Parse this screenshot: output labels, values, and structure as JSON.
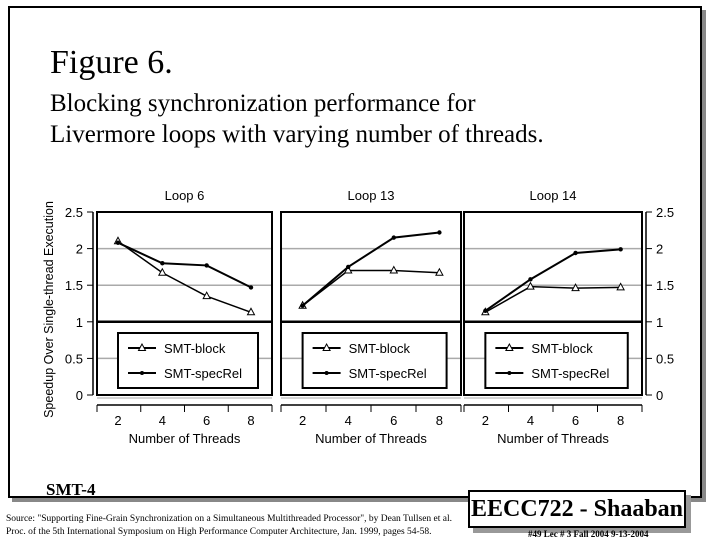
{
  "slide": {
    "figure_label": "Figure 6.",
    "subtitle_line1": "Blocking synchronization performance for",
    "subtitle_line2": "Livermore loops with varying number of threads.",
    "section": "SMT-4",
    "source_line1": "Source: \"Supporting Fine-Grain Synchronization on a Simultaneous Multithreaded Processor\", by Dean Tullsen et al.",
    "source_line2": "Proc. of the 5th International Symposium on High Performance Computer Architecture, Jan. 1999, pages 54-58.",
    "course": "EECC722 - Shaaban",
    "footer": "#49   Lec # 3   Fall 2004  9-13-2004"
  },
  "chart_data": [
    {
      "type": "line",
      "title": "Loop 6",
      "xlabel": "Number of Threads",
      "ylabel": "Speedup Over Single-thread Execution",
      "x": [
        2,
        4,
        6,
        8
      ],
      "ylim": [
        0,
        2.5
      ],
      "yticks": [
        "0",
        "0.5",
        "1",
        "1.5",
        "2",
        "2.5"
      ],
      "grid": true,
      "legend": "bottom",
      "series": [
        {
          "name": "SMT-block",
          "marker": "triangle",
          "values": [
            2.1,
            1.67,
            1.35,
            1.13
          ]
        },
        {
          "name": "SMT-specRel",
          "marker": "dot",
          "values": [
            2.08,
            1.8,
            1.77,
            1.47
          ]
        }
      ]
    },
    {
      "type": "line",
      "title": "Loop 13",
      "xlabel": "Number of Threads",
      "x": [
        2,
        4,
        6,
        8
      ],
      "ylim": [
        0,
        2.5
      ],
      "grid": true,
      "legend": "bottom",
      "series": [
        {
          "name": "SMT-block",
          "marker": "triangle",
          "values": [
            1.22,
            1.7,
            1.7,
            1.67
          ]
        },
        {
          "name": "SMT-specRel",
          "marker": "dot",
          "values": [
            1.22,
            1.75,
            2.15,
            2.22
          ]
        }
      ]
    },
    {
      "type": "line",
      "title": "Loop 14",
      "xlabel": "Number of Threads",
      "x": [
        2,
        4,
        6,
        8
      ],
      "ylim": [
        0,
        2.5
      ],
      "yticks": [
        "0",
        "0.5",
        "1",
        "1.5",
        "2",
        "2.5"
      ],
      "grid": true,
      "legend": "bottom",
      "series": [
        {
          "name": "SMT-block",
          "marker": "triangle",
          "values": [
            1.13,
            1.48,
            1.46,
            1.47
          ]
        },
        {
          "name": "SMT-specRel",
          "marker": "dot",
          "values": [
            1.15,
            1.58,
            1.94,
            1.99
          ]
        }
      ]
    }
  ]
}
